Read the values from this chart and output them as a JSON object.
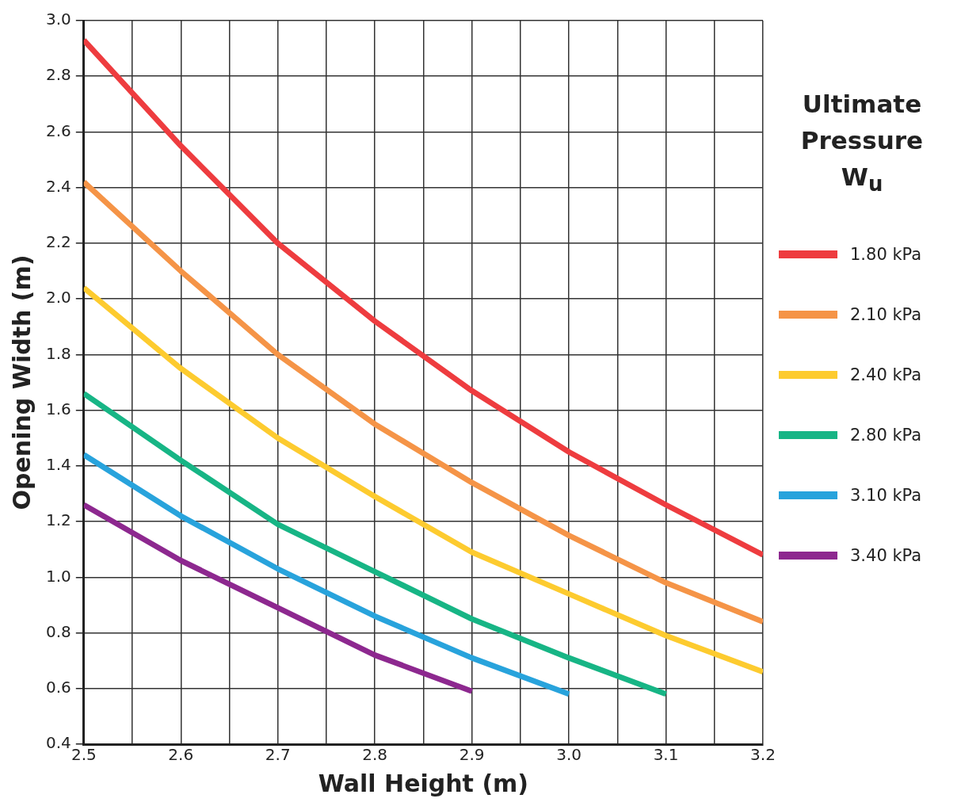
{
  "chart_data": {
    "type": "line",
    "xlabel": "Wall Height (m)",
    "ylabel": "Opening Width (m)",
    "legend_title": "Ultimate Pressure W$_{u}$",
    "legend": "right",
    "grid": true,
    "marker": "none",
    "line_style": "solid",
    "xlim": [
      2.5,
      3.2
    ],
    "xticks": [
      2.5,
      {
        "value": 2.55,
        "label": null
      },
      2.6,
      {
        "value": 2.65,
        "label": null
      },
      2.7,
      {
        "value": 2.75,
        "label": null
      },
      2.8,
      {
        "value": 2.85,
        "label": null
      },
      2.9,
      {
        "value": 2.95,
        "label": null
      },
      {
        "value": 3.0,
        "label": "3.0"
      },
      {
        "value": 3.05,
        "label": null
      },
      3.1,
      {
        "value": 3.15,
        "label": null
      },
      3.2
    ],
    "ylim": [
      0.4,
      3.0
    ],
    "yticks": [
      0.4,
      0.6,
      0.8,
      {
        "value": 1.0,
        "label": "1.0"
      },
      1.2,
      1.4,
      1.6,
      1.8,
      {
        "value": 2.0,
        "label": "2.0"
      },
      2.2,
      2.4,
      2.6,
      2.8,
      {
        "value": 3.0,
        "label": "3.0"
      }
    ],
    "x": [
      2.5,
      2.6,
      2.7,
      2.8,
      2.9,
      3.0,
      3.1,
      3.2
    ],
    "series": [
      {
        "name": "1.80 kPa",
        "color": "#ee3c3f",
        "values": [
          2.93,
          2.55,
          2.2,
          1.92,
          1.67,
          1.45,
          1.26,
          1.08
        ]
      },
      {
        "name": "2.10 kPa",
        "color": "#f59447",
        "values": [
          2.42,
          2.1,
          1.8,
          1.55,
          1.34,
          1.15,
          0.98,
          0.84
        ]
      },
      {
        "name": "2.40 kPa",
        "color": "#fdcb2f",
        "values": [
          2.04,
          1.75,
          1.5,
          1.29,
          1.09,
          0.94,
          0.79,
          0.66
        ]
      },
      {
        "name": "2.80 kPa",
        "color": "#17b585",
        "values": [
          1.66,
          1.42,
          1.19,
          1.02,
          0.85,
          0.71,
          0.58,
          null
        ]
      },
      {
        "name": "3.10 kPa",
        "color": "#28a3dc",
        "values": [
          1.44,
          1.22,
          1.03,
          0.86,
          0.71,
          0.58,
          null,
          null
        ]
      },
      {
        "name": "3.40 kPa",
        "color": "#8d288f",
        "values": [
          1.26,
          1.06,
          0.89,
          0.72,
          0.59,
          null,
          null,
          null
        ]
      }
    ]
  }
}
